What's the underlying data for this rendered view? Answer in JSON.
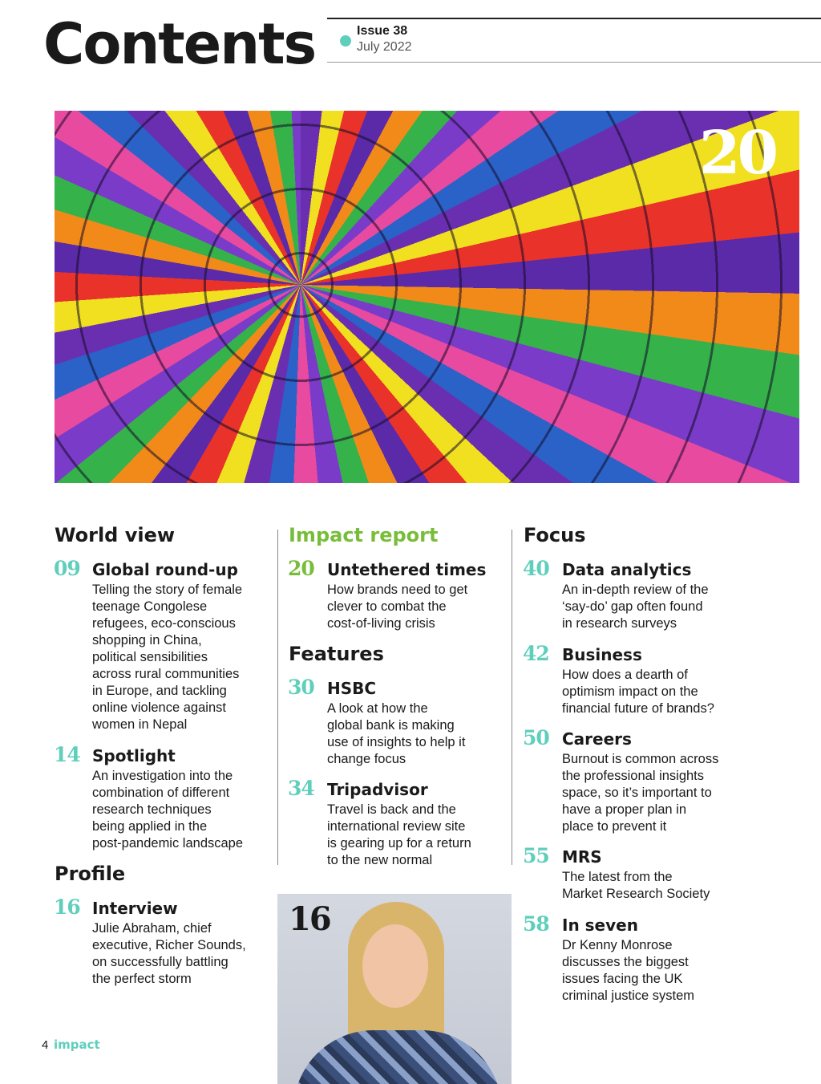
{
  "header": {
    "title": "Contents",
    "issue": "Issue 38",
    "date": "July 2022"
  },
  "hero": {
    "page": "20"
  },
  "portrait": {
    "page": "16"
  },
  "colors": {
    "accent": "#5fcfbc",
    "impact_green": "#78bd3a"
  },
  "sections": {
    "world_view": {
      "heading": "World view",
      "entries": [
        {
          "num": "09",
          "title": "Global round-up",
          "desc": "Telling the story of female\nteenage Congolese\nrefugees, eco-conscious\nshopping in China,\npolitical sensibilities\nacross rural communities\nin Europe, and tackling\nonline violence against\nwomen in Nepal"
        },
        {
          "num": "14",
          "title": "Spotlight",
          "desc": "An investigation into the\ncombination of different\nresearch techniques\nbeing applied in the\npost-pandemic landscape"
        }
      ]
    },
    "profile": {
      "heading": "Profile",
      "entries": [
        {
          "num": "16",
          "title": "Interview",
          "desc": "Julie Abraham, chief\nexecutive, Richer Sounds,\non successfully battling\nthe perfect storm"
        }
      ]
    },
    "impact_report": {
      "heading": "Impact report",
      "entries": [
        {
          "num": "20",
          "title": "Untethered times",
          "desc": "How brands need to get\nclever to combat the\ncost-of-living crisis"
        }
      ]
    },
    "features": {
      "heading": "Features",
      "entries": [
        {
          "num": "30",
          "title": "HSBC",
          "desc": "A look at how the\nglobal bank is making\nuse of insights to help it\nchange focus"
        },
        {
          "num": "34",
          "title": "Tripadvisor",
          "desc": "Travel is back and the\ninternational review site\nis gearing up for a return\nto the new normal"
        }
      ]
    },
    "focus": {
      "heading": "Focus",
      "entries": [
        {
          "num": "40",
          "title": "Data analytics",
          "desc": "An in-depth review of the\n‘say-do’ gap often found\nin research surveys"
        },
        {
          "num": "42",
          "title": "Business",
          "desc": "How does a dearth of\noptimism impact on the\nfinancial future of brands?"
        },
        {
          "num": "50",
          "title": "Careers",
          "desc": "Burnout is common across\nthe professional insights\nspace, so it’s important to\nhave a proper plan in\nplace to prevent it"
        },
        {
          "num": "55",
          "title": "MRS",
          "desc": "The latest from the\nMarket Research Society"
        },
        {
          "num": "58",
          "title": "In seven",
          "desc": "Dr Kenny Monrose\ndiscusses the biggest\nissues facing the UK\ncriminal justice system"
        }
      ]
    }
  },
  "footer": {
    "page_number": "4",
    "brand": "impact"
  }
}
